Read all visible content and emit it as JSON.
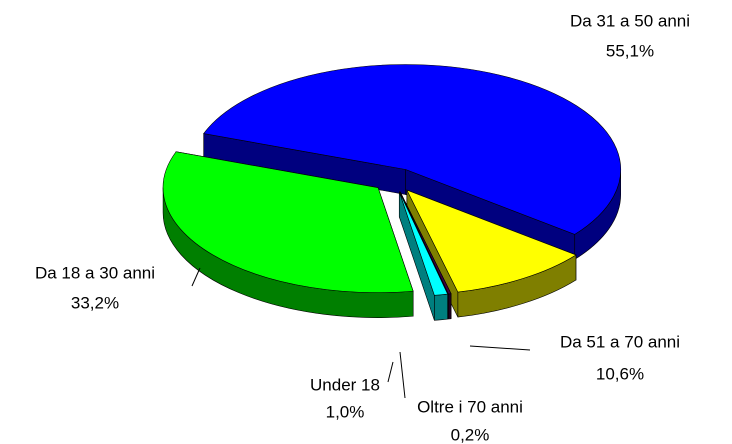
{
  "chart_data": {
    "type": "pie",
    "categories": [
      "Da 31 a 50 anni",
      "Da 51 a 70 anni",
      "Oltre i 70 anni",
      "Under 18",
      "Da 18 a 30 anni"
    ],
    "values": [
      55.1,
      10.6,
      0.2,
      1.0,
      33.2
    ],
    "value_labels": [
      "55,1%",
      "10,6%",
      "0,2%",
      "1,0%",
      "33,2%"
    ],
    "colors": [
      "#0000ff",
      "#ffff00",
      "#400040",
      "#00ffff",
      "#00ff00"
    ]
  }
}
